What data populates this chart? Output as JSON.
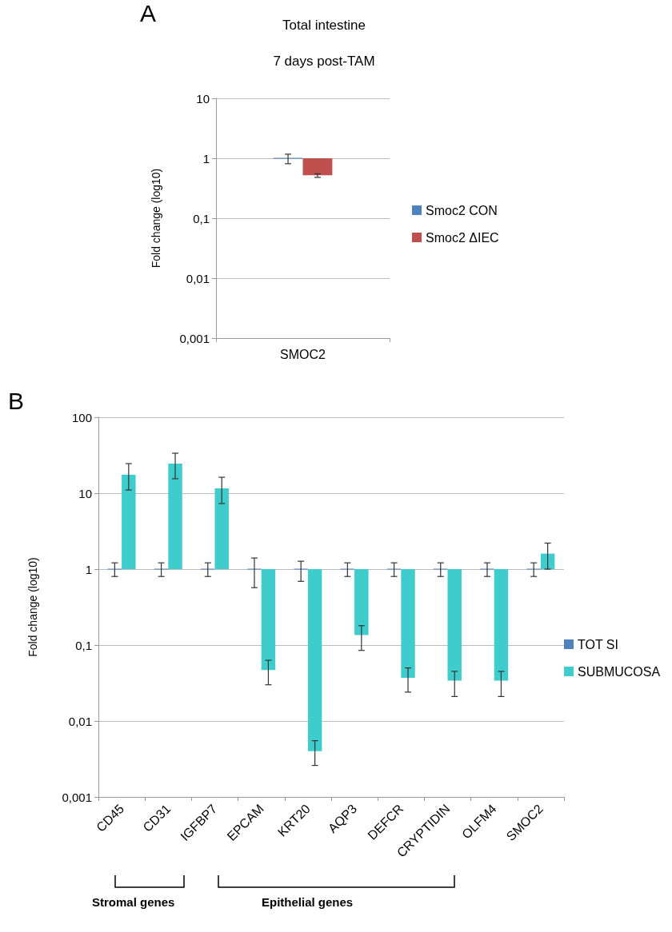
{
  "chart_data": [
    {
      "type": "bar",
      "title": "Total intestine",
      "subtitle": "7 days post-TAM",
      "ylabel": "Fold change (log10)",
      "categories": [
        "SMOC2"
      ],
      "series": [
        {
          "name": "Smoc2 CON",
          "color": "#4f81bd",
          "base": [
            1
          ],
          "values": [
            0
          ],
          "errors": [
            [
              0.81,
              1.17
            ]
          ]
        },
        {
          "name": "Smoc2 ΔIEC",
          "color": "#c0504d",
          "base": [
            1
          ],
          "values": [
            -0.48
          ],
          "errors": [
            [
              0.48,
              0.55
            ]
          ]
        }
      ],
      "log": "y",
      "ylim": [
        0.001,
        10
      ],
      "yticks": [
        {
          "value": 0.001,
          "label": "0,001"
        },
        {
          "value": 0.01,
          "label": "0,01"
        },
        {
          "value": 0.1,
          "label": "0,1"
        },
        1,
        10
      ],
      "grid": "y",
      "legend": "right",
      "annotations": [
        "A"
      ]
    },
    {
      "type": "bar",
      "ylabel": "Fold change (log10)",
      "categories": [
        "CD45",
        "CD31",
        "IGFBP7",
        "EPCAM",
        "KRT20",
        "AQP3",
        "DEFCR",
        "CRYPTIDIN",
        "OLFM4",
        "SMOC2"
      ],
      "series": [
        {
          "name": "TOT SI",
          "color": "#4f81bd",
          "base": [
            1,
            1,
            1,
            1,
            1,
            1,
            1,
            1,
            1,
            1
          ],
          "values": [
            0,
            0,
            0,
            0,
            0,
            0,
            0,
            0,
            0,
            0
          ],
          "errors": [
            [
              0.8,
              1.21
            ],
            [
              0.8,
              1.21
            ],
            [
              0.8,
              1.21
            ],
            [
              0.57,
              1.4
            ],
            [
              0.69,
              1.27
            ],
            [
              0.8,
              1.21
            ],
            [
              0.8,
              1.21
            ],
            [
              0.8,
              1.21
            ],
            [
              0.8,
              1.21
            ],
            [
              0.8,
              1.21
            ]
          ]
        },
        {
          "name": "SUBMUCOSA",
          "color": "#3ecdcc",
          "base": [
            1,
            1,
            1,
            1,
            1,
            1,
            1,
            1,
            1,
            1
          ],
          "values": [
            16.5,
            23.5,
            10.6,
            -0.953,
            -0.996,
            -0.865,
            -0.963,
            -0.966,
            -0.966,
            0.6
          ],
          "errors": [
            [
              11,
              24.5
            ],
            [
              15.5,
              33.6
            ],
            [
              7.3,
              16.2
            ],
            [
              0.03,
              0.063
            ],
            [
              0.0026,
              0.0055
            ],
            [
              0.085,
              0.18
            ],
            [
              0.024,
              0.05
            ],
            [
              0.021,
              0.045
            ],
            [
              0.021,
              0.045
            ],
            [
              1,
              2.2
            ]
          ]
        }
      ],
      "log": "y",
      "ylim": [
        0.001,
        100
      ],
      "yticks": [
        {
          "value": 0.001,
          "label": "0,001"
        },
        {
          "value": 0.01,
          "label": "0,01"
        },
        {
          "value": 0.1,
          "label": "0,1"
        },
        1,
        10,
        100
      ],
      "grid": "y",
      "legend": "right",
      "annotations": [
        "B",
        "Stromal genes",
        "Epithelial genes"
      ]
    }
  ]
}
